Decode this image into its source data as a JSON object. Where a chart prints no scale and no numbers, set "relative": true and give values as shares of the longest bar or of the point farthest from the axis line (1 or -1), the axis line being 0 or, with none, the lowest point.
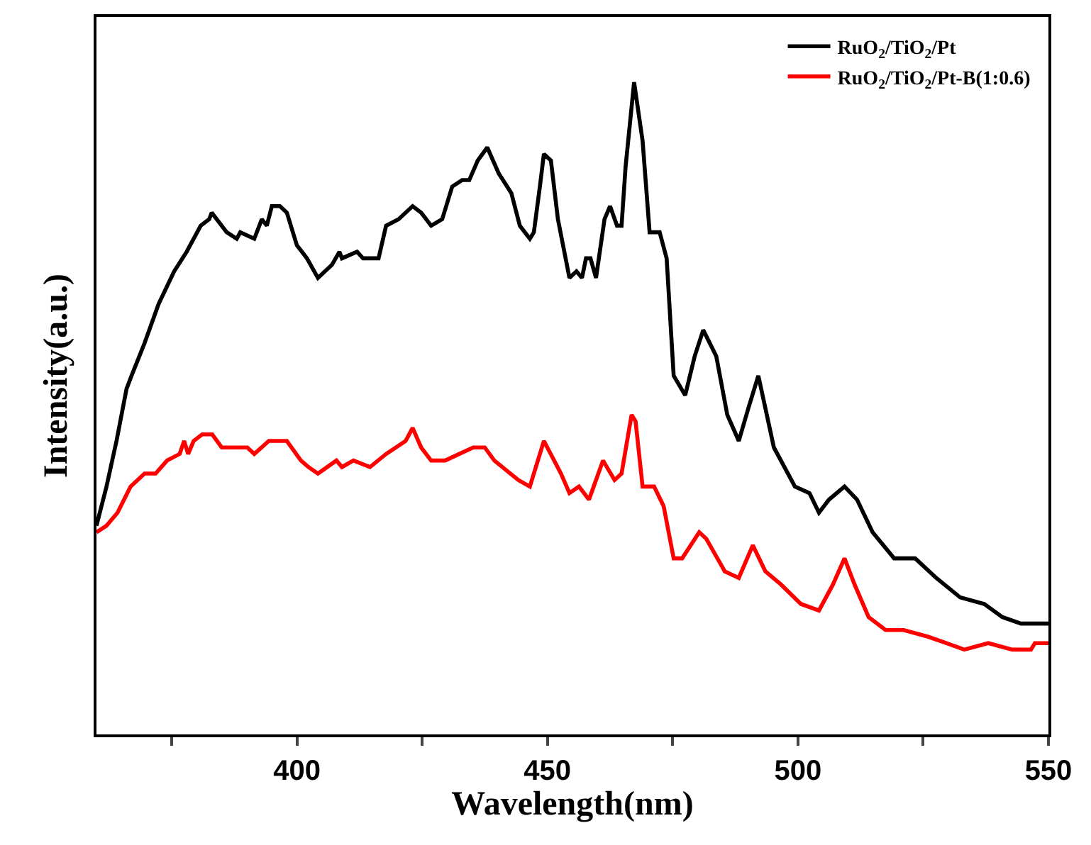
{
  "chart_data": {
    "type": "line",
    "relative": true,
    "xlabel": "Wavelength(nm)",
    "ylabel": "Intensity(a.u.)",
    "xlim": [
      360,
      550
    ],
    "xticks": [
      {
        "value": 375,
        "label": null
      },
      400,
      {
        "value": 425,
        "label": null
      },
      450,
      {
        "value": 475,
        "label": null
      },
      500,
      {
        "value": 525,
        "label": null
      },
      550
    ],
    "legend": "top right",
    "marker": "none",
    "line_style": "solid",
    "series": [
      {
        "name": "RuO$_{2}$/TiO$_{2}$/Pt",
        "color": "#000000",
        "x": [
          360,
          362,
          364,
          366,
          367,
          369.6,
          372.4,
          375.5,
          378,
          380.8,
          382.5,
          383,
          386,
          388,
          388.7,
          391.5,
          393,
          394,
          395,
          396.6,
          398,
          400,
          402,
          404.2,
          407,
          408.5,
          409,
          412,
          413.2,
          414.6,
          416.3,
          417.8,
          420.3,
          423.1,
          424.8,
          426.8,
          429,
          431,
          433,
          434.4,
          436.1,
          438,
          440.3,
          442.8,
          444.5,
          446.5,
          447.3,
          448.5,
          449.3,
          450.7,
          452.1,
          454.4,
          455.8,
          456.9,
          457.7,
          458.6,
          459.7,
          461.4,
          462.5,
          463.9,
          464.8,
          465.6,
          467.3,
          469,
          470.4,
          472.4,
          473.8,
          475.2,
          477.5,
          479.4,
          481.1,
          483.7,
          485.9,
          488.2,
          490.1,
          492.1,
          495.2,
          499.4,
          502.3,
          504.2,
          506.2,
          509.3,
          511.8,
          514.9,
          519.2,
          523.4,
          527.6,
          532.4,
          537.2,
          540.8,
          544.5,
          547.3,
          550
        ],
        "values": [
          0.32,
          0.38,
          0.45,
          0.53,
          0.55,
          0.6,
          0.66,
          0.71,
          0.74,
          0.78,
          0.79,
          0.8,
          0.77,
          0.76,
          0.77,
          0.76,
          0.79,
          0.78,
          0.81,
          0.81,
          0.8,
          0.75,
          0.73,
          0.7,
          0.72,
          0.74,
          0.73,
          0.74,
          0.73,
          0.73,
          0.73,
          0.78,
          0.79,
          0.81,
          0.8,
          0.78,
          0.79,
          0.84,
          0.85,
          0.85,
          0.88,
          0.9,
          0.86,
          0.83,
          0.78,
          0.76,
          0.77,
          0.84,
          0.89,
          0.88,
          0.79,
          0.7,
          0.71,
          0.7,
          0.73,
          0.73,
          0.7,
          0.79,
          0.81,
          0.78,
          0.78,
          0.87,
          1.0,
          0.91,
          0.77,
          0.77,
          0.73,
          0.55,
          0.52,
          0.58,
          0.62,
          0.58,
          0.49,
          0.45,
          0.5,
          0.55,
          0.44,
          0.38,
          0.37,
          0.34,
          0.36,
          0.38,
          0.36,
          0.31,
          0.27,
          0.27,
          0.24,
          0.21,
          0.2,
          0.18,
          0.17,
          0.17,
          0.17
        ]
      },
      {
        "name": "RuO$_{2}$/TiO$_{2}$/Pt-B(1:0.6)",
        "color": "#ff0000",
        "x": [
          360,
          362,
          364.2,
          366.8,
          369.6,
          371.8,
          374.1,
          376.6,
          377.5,
          378.3,
          379.4,
          381.1,
          383.1,
          385,
          388.7,
          390.1,
          391.5,
          394.4,
          396.3,
          398,
          400.8,
          402.3,
          404.2,
          407.9,
          409,
          411.3,
          414.6,
          417.8,
          421.7,
          423.1,
          424.8,
          426.8,
          429.6,
          432.4,
          435.2,
          437.5,
          439.4,
          444.2,
          446.5,
          449.3,
          452.7,
          454.4,
          456.3,
          458.3,
          459.7,
          461.1,
          463.4,
          464.8,
          466.8,
          467.6,
          469,
          471.3,
          473.2,
          475.2,
          476.9,
          480.3,
          481.7,
          485.4,
          488.2,
          491,
          493.5,
          496.6,
          500.6,
          504.2,
          507,
          509.3,
          511.3,
          514.1,
          517.5,
          521.1,
          525.9,
          529.6,
          533.2,
          538,
          542.8,
          546.5,
          547.3,
          550
        ],
        "values": [
          0.31,
          0.32,
          0.34,
          0.38,
          0.4,
          0.4,
          0.42,
          0.43,
          0.45,
          0.43,
          0.45,
          0.46,
          0.46,
          0.44,
          0.44,
          0.44,
          0.43,
          0.45,
          0.45,
          0.45,
          0.42,
          0.41,
          0.4,
          0.42,
          0.41,
          0.42,
          0.41,
          0.43,
          0.45,
          0.47,
          0.44,
          0.42,
          0.42,
          0.43,
          0.44,
          0.44,
          0.42,
          0.39,
          0.38,
          0.45,
          0.4,
          0.37,
          0.38,
          0.36,
          0.39,
          0.42,
          0.39,
          0.4,
          0.49,
          0.48,
          0.38,
          0.38,
          0.35,
          0.27,
          0.27,
          0.31,
          0.3,
          0.25,
          0.24,
          0.29,
          0.25,
          0.23,
          0.2,
          0.19,
          0.23,
          0.27,
          0.23,
          0.18,
          0.16,
          0.16,
          0.15,
          0.14,
          0.13,
          0.14,
          0.13,
          0.13,
          0.14,
          0.14
        ]
      }
    ]
  }
}
